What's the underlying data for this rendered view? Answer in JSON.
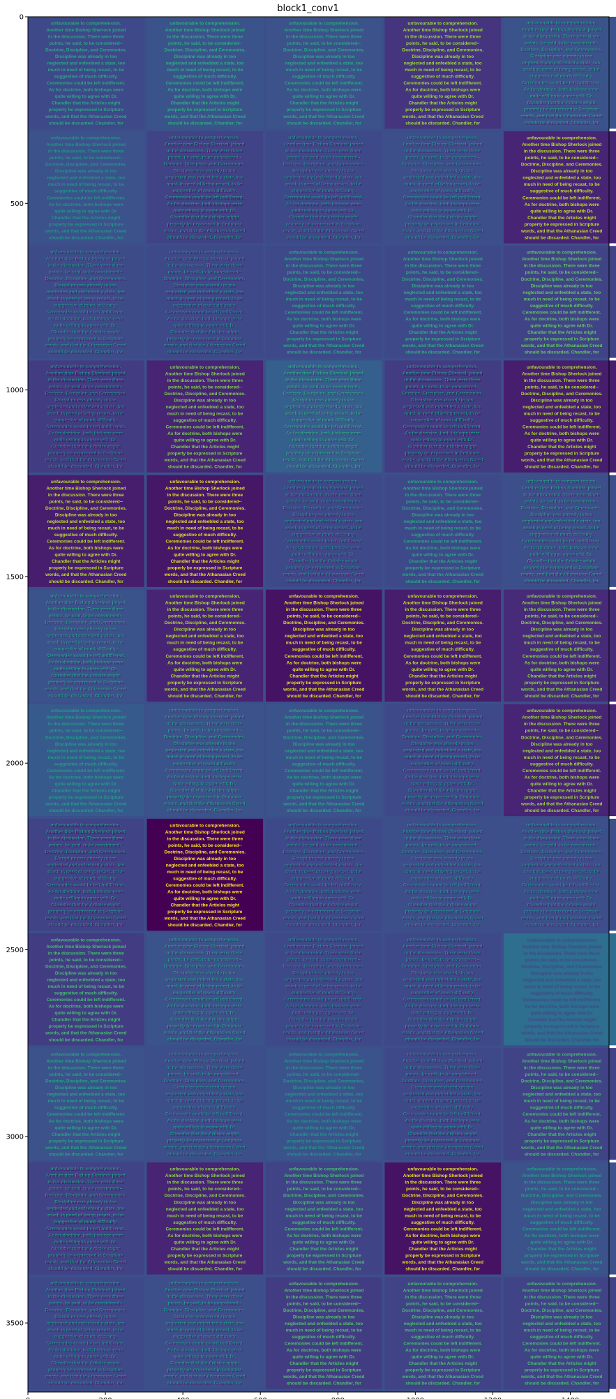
{
  "chart_data": {
    "type": "heatmap",
    "title": "block1_conv1",
    "xlabel": "",
    "ylabel": "",
    "x_ticks": [
      0,
      200,
      400,
      600,
      800,
      1000,
      1200,
      1400
    ],
    "y_ticks": [
      0,
      500,
      1000,
      1500,
      2000,
      2500,
      3000,
      3500
    ],
    "xlim": [
      0,
      1500
    ],
    "ylim": [
      3685,
      0
    ],
    "grid": false,
    "colormap": "viridis",
    "grid_rows": 12,
    "grid_cols": 5,
    "tile_width": 300,
    "tile_height": 300,
    "tile_gap": 7,
    "image_height": 3685,
    "tile_text_lines": [
      "unfavourable to comprehension.",
      "Another time Bishop Sherlock joined",
      "in the discussion. There were three",
      "points, he said, to be considered--",
      "Doctrine, Discipline, and Ceremonies.",
      "Discipline was already in too",
      "neglected and enfeebled a state, too",
      "much in need of being recast, to be",
      "suggestive of much difficulty.",
      "Ceremonies could be left indifferent.",
      "As for doctrine, both bishops were",
      "quite willing to agree with Dr.",
      "Chandler that the Articles might",
      "properly be expressed in Scripture",
      "words, and that the Athanasian Creed",
      "should be discarded. Chandler, for"
    ],
    "tiles": [
      {
        "style": "bright",
        "bg": 0.22,
        "fg": 0.6
      },
      {
        "style": "bright",
        "bg": 0.26,
        "fg": 0.62
      },
      {
        "style": "bright",
        "bg": 0.25,
        "fg": 0.6
      },
      {
        "style": "bright",
        "bg": 0.15,
        "fg": 0.85
      },
      {
        "style": "ghost",
        "bg": 0.26,
        "fg": 0.4
      },
      {
        "style": "bright",
        "bg": 0.25,
        "fg": 0.52
      },
      {
        "style": "ghost",
        "bg": 0.2,
        "fg": 0.38
      },
      {
        "style": "ghost",
        "bg": 0.22,
        "fg": 0.34
      },
      {
        "style": "ghost",
        "bg": 0.24,
        "fg": 0.35
      },
      {
        "style": "bright",
        "bg": 0.1,
        "fg": 0.9
      },
      {
        "style": "ghost",
        "bg": 0.23,
        "fg": 0.35
      },
      {
        "style": "ghost",
        "bg": 0.22,
        "fg": 0.34
      },
      {
        "style": "bright",
        "bg": 0.22,
        "fg": 0.6
      },
      {
        "style": "bright",
        "bg": 0.22,
        "fg": 0.62
      },
      {
        "style": "bright",
        "bg": 0.2,
        "fg": 0.75
      },
      {
        "style": "ghost",
        "bg": 0.18,
        "fg": 0.34
      },
      {
        "style": "bright",
        "bg": 0.1,
        "fg": 0.8
      },
      {
        "style": "ghost",
        "bg": 0.3,
        "fg": 0.45
      },
      {
        "style": "ghost",
        "bg": 0.18,
        "fg": 0.38
      },
      {
        "style": "bright",
        "bg": 0.08,
        "fg": 0.88
      },
      {
        "style": "bright",
        "bg": 0.08,
        "fg": 0.9
      },
      {
        "style": "bright",
        "bg": 0.06,
        "fg": 0.95
      },
      {
        "style": "ghost",
        "bg": 0.22,
        "fg": 0.33
      },
      {
        "style": "bright",
        "bg": 0.22,
        "fg": 0.6
      },
      {
        "style": "ghost",
        "bg": 0.24,
        "fg": 0.4
      },
      {
        "style": "ghost",
        "bg": 0.26,
        "fg": 0.4
      },
      {
        "style": "bright",
        "bg": 0.1,
        "fg": 0.88
      },
      {
        "style": "bright",
        "bg": 0.05,
        "fg": 0.95
      },
      {
        "style": "bright",
        "bg": 0.08,
        "fg": 0.9
      },
      {
        "style": "bright",
        "bg": 0.12,
        "fg": 0.82
      },
      {
        "style": "bright",
        "bg": 0.28,
        "fg": 0.55
      },
      {
        "style": "ghost",
        "bg": 0.26,
        "fg": 0.4
      },
      {
        "style": "bright",
        "bg": 0.26,
        "fg": 0.58
      },
      {
        "style": "ghost",
        "bg": 0.22,
        "fg": 0.36
      },
      {
        "style": "bright",
        "bg": 0.1,
        "fg": 0.85
      },
      {
        "style": "ghost",
        "bg": 0.2,
        "fg": 0.38
      },
      {
        "style": "bright",
        "bg": 0.0,
        "fg": 1.0
      },
      {
        "style": "ghost",
        "bg": 0.22,
        "fg": 0.33
      },
      {
        "style": "ghost",
        "bg": 0.24,
        "fg": 0.35
      },
      {
        "style": "ghost",
        "bg": 0.24,
        "fg": 0.34
      },
      {
        "style": "bright",
        "bg": 0.18,
        "fg": 0.7
      },
      {
        "style": "ghost",
        "bg": 0.26,
        "fg": 0.4
      },
      {
        "style": "ghost",
        "bg": 0.22,
        "fg": 0.32
      },
      {
        "style": "ghost",
        "bg": 0.22,
        "fg": 0.36
      },
      {
        "style": "ghost",
        "bg": 0.36,
        "fg": 0.14
      },
      {
        "style": "bright",
        "bg": 0.25,
        "fg": 0.58
      },
      {
        "style": "ghost",
        "bg": 0.24,
        "fg": 0.36
      },
      {
        "style": "bright",
        "bg": 0.26,
        "fg": 0.52
      },
      {
        "style": "ghost",
        "bg": 0.22,
        "fg": 0.34
      },
      {
        "style": "bright",
        "bg": 0.2,
        "fg": 0.7
      },
      {
        "style": "ghost",
        "bg": 0.2,
        "fg": 0.4
      },
      {
        "style": "bright",
        "bg": 0.1,
        "fg": 0.82
      },
      {
        "style": "bright",
        "bg": 0.2,
        "fg": 0.7
      },
      {
        "style": "bright",
        "bg": 0.05,
        "fg": 0.95
      },
      {
        "style": "bright",
        "bg": 0.25,
        "fg": 0.56
      },
      {
        "style": "ghost",
        "bg": 0.22,
        "fg": 0.36
      },
      {
        "style": "ghost",
        "bg": 0.24,
        "fg": 0.38
      },
      {
        "style": "bright",
        "bg": 0.18,
        "fg": 0.72
      },
      {
        "style": "bright",
        "bg": 0.2,
        "fg": 0.7
      },
      {
        "style": "bright",
        "bg": 0.2,
        "fg": 0.7
      }
    ]
  }
}
